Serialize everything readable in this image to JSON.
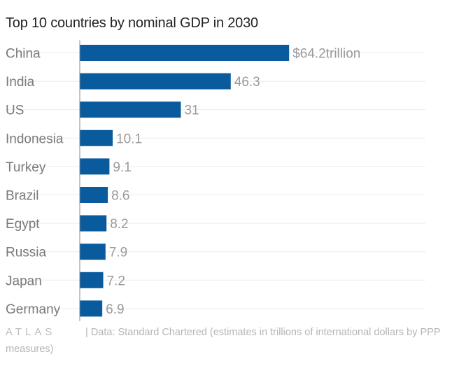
{
  "chart_data": {
    "type": "bar",
    "orientation": "horizontal",
    "title": "Top 10 countries by nominal GDP in 2030",
    "categories": [
      "China",
      "India",
      "US",
      "Indonesia",
      "Turkey",
      "Brazil",
      "Egypt",
      "Russia",
      "Japan",
      "Germany"
    ],
    "values": [
      64.2,
      46.3,
      31,
      10.1,
      9.1,
      8.6,
      8.2,
      7.9,
      7.2,
      6.9
    ],
    "value_labels": [
      "$64.2trillion",
      "46.3",
      "31",
      "10.1",
      "9.1",
      "8.6",
      "8.2",
      "7.9",
      "7.2",
      "6.9"
    ],
    "xlim": [
      0,
      106
    ],
    "xlabel": "",
    "ylabel": "",
    "grid": true,
    "bar_color": "#0a5b9e"
  },
  "footer": {
    "logo": "ATLAS",
    "source": "| Data: Standard Chartered (estimates in trillions of international dollars by PPP measures)"
  }
}
